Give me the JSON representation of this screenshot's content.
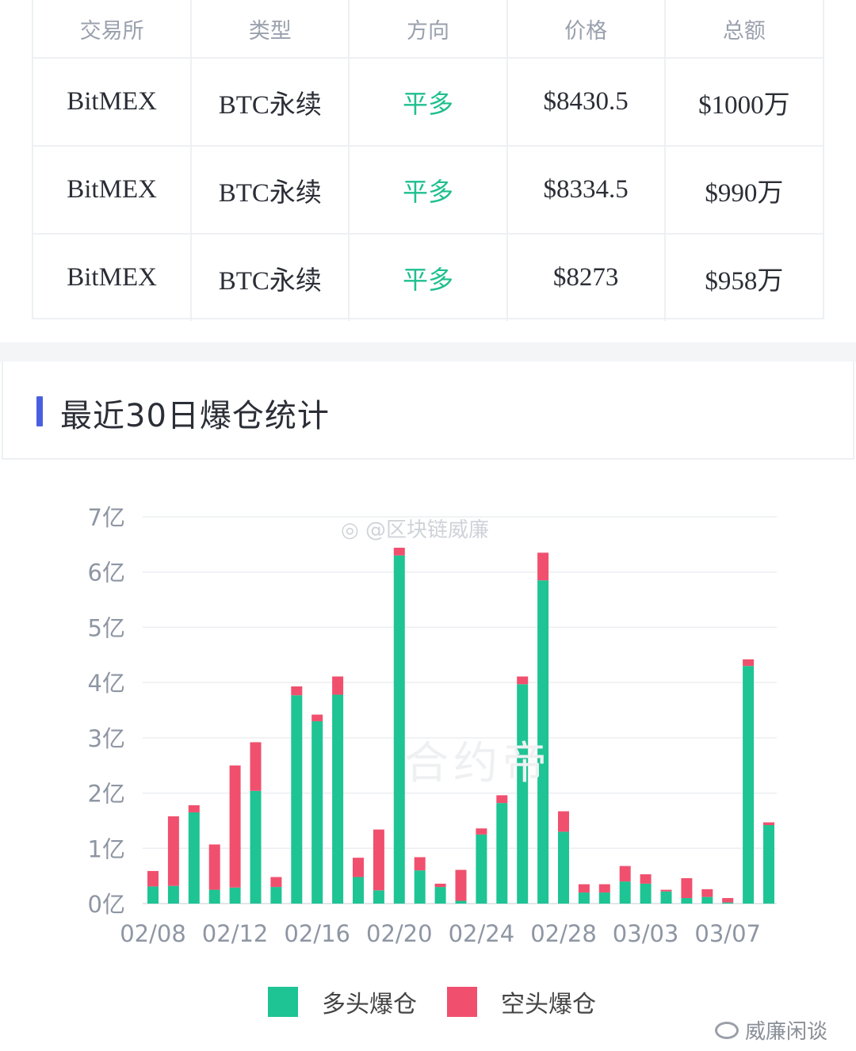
{
  "table": {
    "headers": [
      "交易所",
      "类型",
      "方向",
      "价格",
      "总额"
    ],
    "rows": [
      {
        "exchange": "BitMEX",
        "type": "BTC永续",
        "direction": "平多",
        "price": "$8430.5",
        "total": "$1000万"
      },
      {
        "exchange": "BitMEX",
        "type": "BTC永续",
        "direction": "平多",
        "price": "$8334.5",
        "total": "$990万"
      },
      {
        "exchange": "BitMEX",
        "type": "BTC永续",
        "direction": "平多",
        "price": "$8273",
        "total": "$958万"
      }
    ]
  },
  "section": {
    "title": "最近30日爆仓统计"
  },
  "watermarks": {
    "weibo": "@区块链威廉",
    "center": "合约帝"
  },
  "footer": {
    "brand": "威廉闲谈"
  },
  "colors": {
    "long": "#1ec494",
    "short": "#f0506e",
    "direction": "#1fbf8f",
    "accent": "#4a5fe0"
  },
  "chart_data": {
    "type": "bar",
    "stacked": true,
    "title": "最近30日爆仓统计",
    "y_tick_labels": [
      "0亿",
      "1亿",
      "2亿",
      "3亿",
      "4亿",
      "5亿",
      "6亿",
      "7亿"
    ],
    "ylim": [
      0,
      7
    ],
    "y_unit": "亿",
    "x_tick_labels": [
      "02/08",
      "02/12",
      "02/16",
      "02/20",
      "02/24",
      "02/28",
      "03/03",
      "03/07"
    ],
    "categories": [
      "02/08",
      "02/09",
      "02/10",
      "02/11",
      "02/12",
      "02/13",
      "02/14",
      "02/15",
      "02/16",
      "02/17",
      "02/18",
      "02/19",
      "02/20",
      "02/21",
      "02/22",
      "02/23",
      "02/24",
      "02/25",
      "02/26",
      "02/27",
      "02/28",
      "02/29",
      "03/01",
      "03/02",
      "03/03",
      "03/04",
      "03/05",
      "03/06",
      "03/07",
      "03/08",
      "03/09"
    ],
    "series": [
      {
        "name": "多头爆仓",
        "color": "#1ec494",
        "values": [
          0.31,
          0.32,
          1.65,
          0.25,
          0.29,
          2.04,
          0.3,
          3.77,
          3.3,
          3.78,
          0.48,
          0.24,
          6.3,
          0.6,
          0.3,
          0.05,
          1.25,
          1.82,
          3.97,
          5.85,
          1.3,
          0.2,
          0.2,
          0.4,
          0.36,
          0.22,
          0.1,
          0.12,
          0.02,
          4.3,
          1.42
        ]
      },
      {
        "name": "空头爆仓",
        "color": "#f0506e",
        "values": [
          0.28,
          1.26,
          0.13,
          0.82,
          2.21,
          0.88,
          0.18,
          0.16,
          0.12,
          0.33,
          0.35,
          1.1,
          0.14,
          0.24,
          0.06,
          0.56,
          0.11,
          0.14,
          0.14,
          0.5,
          0.37,
          0.15,
          0.15,
          0.28,
          0.17,
          0.03,
          0.36,
          0.14,
          0.08,
          0.12,
          0.05
        ]
      }
    ],
    "legend": {
      "position": "bottom",
      "entries": [
        "多头爆仓",
        "空头爆仓"
      ]
    },
    "grid": true
  }
}
